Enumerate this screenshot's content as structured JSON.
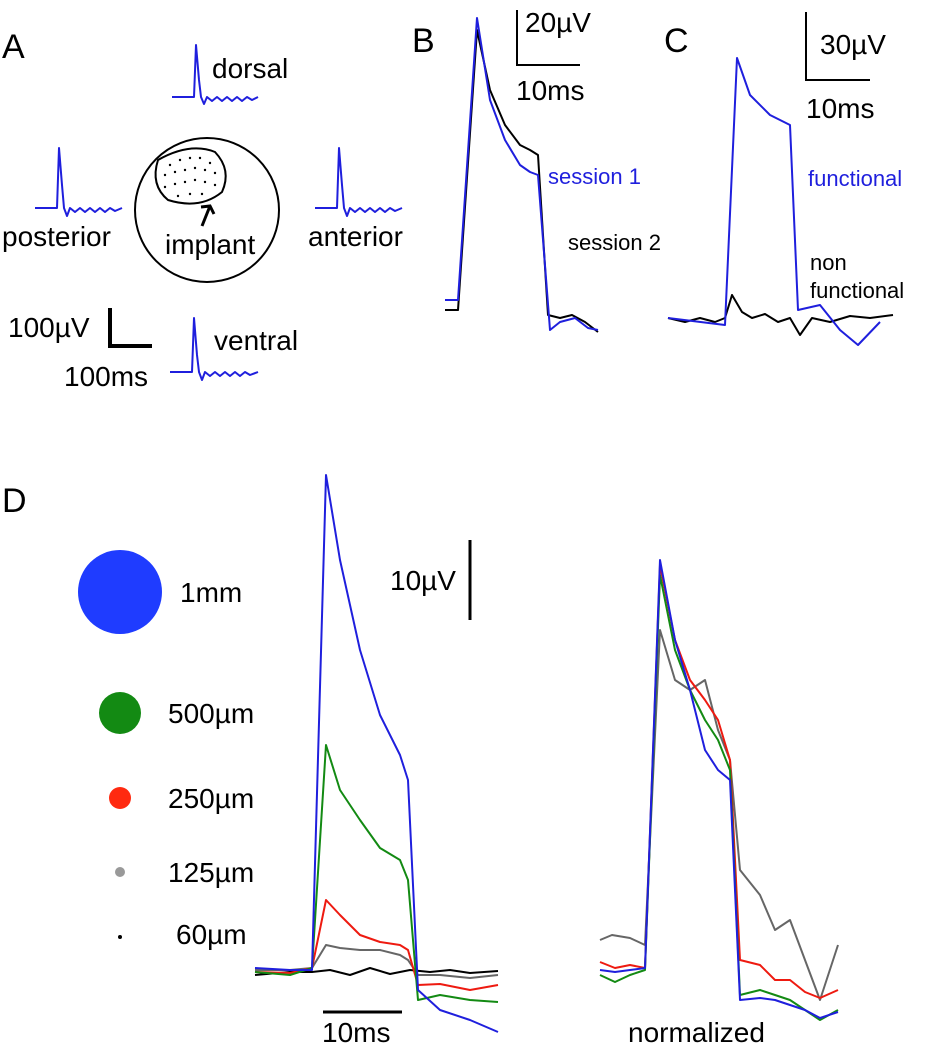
{
  "panel_a": {
    "label": "A",
    "directions": {
      "dorsal": "dorsal",
      "posterior": "posterior",
      "anterior": "anterior",
      "ventral": "ventral"
    },
    "implant": "implant",
    "scale_y": "100µV",
    "scale_x": "100ms"
  },
  "panel_b": {
    "label": "B",
    "scale_y": "20µV",
    "scale_x": "10ms",
    "trace_1": "session 1",
    "trace_2": "session 2"
  },
  "panel_c": {
    "label": "C",
    "scale_y": "30µV",
    "scale_x": "10ms",
    "trace_1": "functional",
    "trace_2": [
      "non",
      "functional"
    ]
  },
  "panel_d": {
    "label": "D",
    "scale_y": "10µV",
    "scale_x": "10ms",
    "normalized": "normalized",
    "spot_sizes": [
      "1mm",
      "500µm",
      "250µm",
      "125µm",
      "60µm"
    ]
  }
}
